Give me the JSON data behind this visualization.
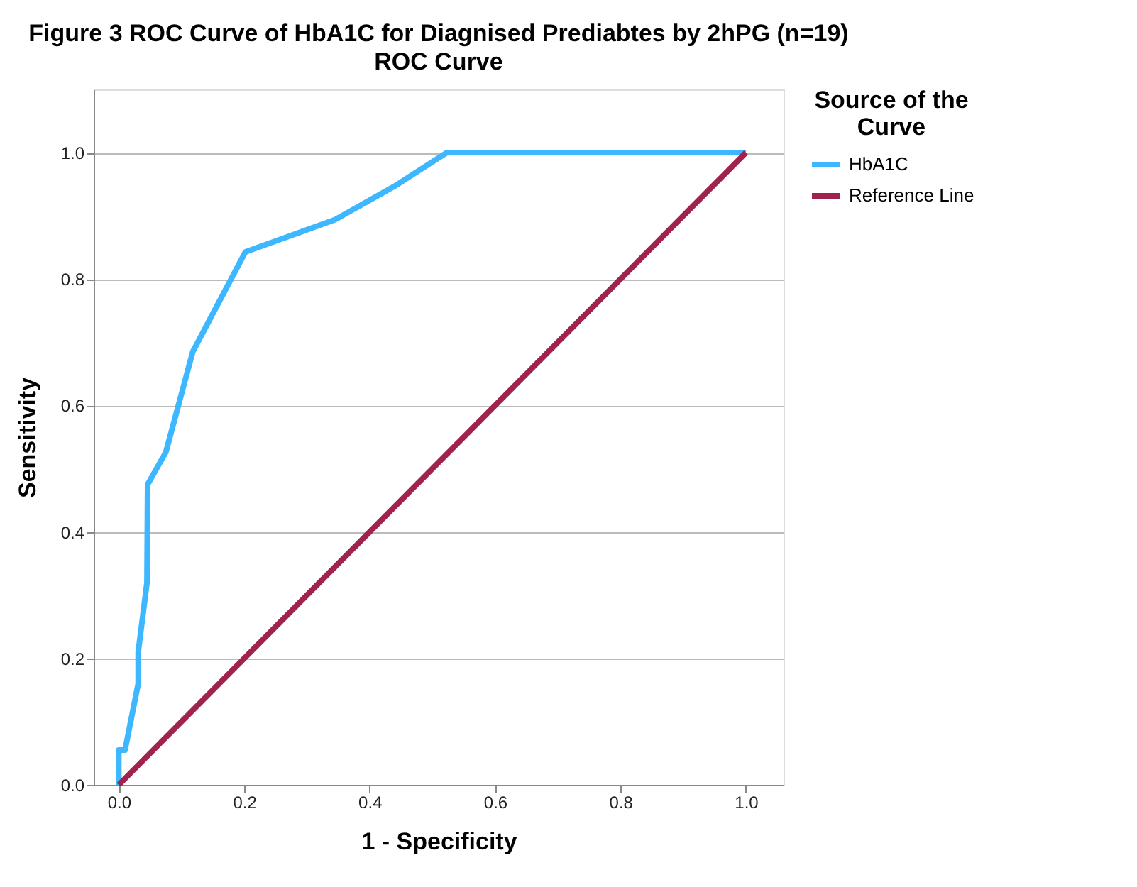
{
  "chart_data": {
    "type": "line",
    "title": "Figure 3 ROC Curve of HbA1C for Diagnised Prediabtes by 2hPG (n=19)",
    "subtitle": "ROC Curve",
    "xlabel": "1 - Specificity",
    "ylabel": "Sensitivity",
    "legend_title": "Source of the Curve",
    "series": [
      {
        "name": "HbA1C",
        "color": "#3db7ff",
        "x": [
          0,
          0,
          0.01,
          0.031,
          0.031,
          0.045,
          0.046,
          0.075,
          0.118,
          0.202,
          0.345,
          0.44,
          0.523,
          1
        ],
        "values": [
          0,
          0.055,
          0.055,
          0.16,
          0.21,
          0.32,
          0.475,
          0.526,
          0.685,
          0.843,
          0.894,
          0.947,
          1,
          1
        ]
      },
      {
        "name": "Reference Line",
        "color": "#a0224f",
        "x": [
          0,
          1
        ],
        "values": [
          0,
          1
        ]
      }
    ],
    "xlim": [
      -0.04,
      1.06
    ],
    "ylim": [
      0,
      1.1
    ],
    "xticks": [
      {
        "value": 0,
        "label": "0.0"
      },
      {
        "value": 0.2,
        "label": "0.2"
      },
      {
        "value": 0.4,
        "label": "0.4"
      },
      {
        "value": 0.6,
        "label": "0.6"
      },
      {
        "value": 0.8,
        "label": "0.8"
      },
      {
        "value": 1,
        "label": "1.0"
      }
    ],
    "yticks": [
      {
        "value": 0,
        "label": "0.0"
      },
      {
        "value": 0.2,
        "label": "0.2"
      },
      {
        "value": 0.4,
        "label": "0.4"
      },
      {
        "value": 0.6,
        "label": "0.6"
      },
      {
        "value": 0.8,
        "label": "0.8"
      },
      {
        "value": 1,
        "label": "1.0"
      }
    ],
    "grid": "y",
    "legend": "top right",
    "marker": "none",
    "line_style": "solid"
  }
}
